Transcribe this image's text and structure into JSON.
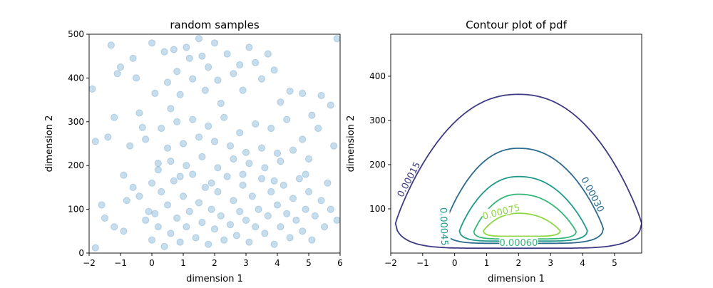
{
  "chart_data": [
    {
      "type": "scatter",
      "title": "random samples",
      "xlabel": "dimension 1",
      "ylabel": "dimension 2",
      "xlim": [
        -2,
        6
      ],
      "ylim": [
        0,
        500
      ],
      "xticks": [
        -2,
        -1,
        0,
        1,
        2,
        3,
        4,
        5,
        6
      ],
      "yticks": [
        0,
        100,
        200,
        300,
        400,
        500
      ],
      "xtick_labels": [
        "−2",
        "−1",
        "0",
        "1",
        "2",
        "3",
        "4",
        "5",
        "6"
      ],
      "ytick_labels": [
        "0",
        "100",
        "200",
        "300",
        "400",
        "500"
      ],
      "marker_color": "#1f77b4",
      "marker_alpha": 0.25,
      "grid": false,
      "series": [
        {
          "points": [
            [
              -1.9,
              375
            ],
            [
              -1.8,
              255
            ],
            [
              -1.8,
              12
            ],
            [
              -1.6,
              110
            ],
            [
              -1.4,
              265
            ],
            [
              -1.3,
              475
            ],
            [
              -1.1,
              410
            ],
            [
              -1.0,
              425
            ],
            [
              -0.9,
              178
            ],
            [
              -0.8,
              120
            ],
            [
              -0.6,
              445
            ],
            [
              -0.5,
              400
            ],
            [
              -0.4,
              320
            ],
            [
              -0.3,
              287
            ],
            [
              -0.1,
              95
            ],
            [
              0.0,
              480
            ],
            [
              0.1,
              365
            ],
            [
              0.2,
              205
            ],
            [
              0.4,
              460
            ],
            [
              0.5,
              390
            ],
            [
              0.6,
              330
            ],
            [
              0.7,
              465
            ],
            [
              0.8,
              415
            ],
            [
              0.9,
              362
            ],
            [
              1.1,
              470
            ],
            [
              1.2,
              445
            ],
            [
              1.3,
              398
            ],
            [
              1.5,
              490
            ],
            [
              1.6,
              450
            ],
            [
              1.7,
              372
            ],
            [
              1.8,
              425
            ],
            [
              2.0,
              480
            ],
            [
              2.1,
              395
            ],
            [
              2.2,
              342
            ],
            [
              2.4,
              455
            ],
            [
              2.6,
              410
            ],
            [
              2.8,
              430
            ],
            [
              2.9,
              372
            ],
            [
              3.1,
              470
            ],
            [
              3.3,
              435
            ],
            [
              3.5,
              398
            ],
            [
              3.7,
              455
            ],
            [
              3.9,
              418
            ],
            [
              4.1,
              345
            ],
            [
              4.4,
              370
            ],
            [
              4.8,
              365
            ],
            [
              5.1,
              315
            ],
            [
              5.4,
              360
            ],
            [
              5.7,
              338
            ],
            [
              5.9,
              490
            ],
            [
              -1.2,
              310
            ],
            [
              -0.7,
              245
            ],
            [
              -0.2,
              260
            ],
            [
              0.3,
              285
            ],
            [
              0.8,
              300
            ],
            [
              1.3,
              305
            ],
            [
              1.8,
              290
            ],
            [
              2.3,
              310
            ],
            [
              2.8,
              275
            ],
            [
              3.3,
              295
            ],
            [
              3.8,
              285
            ],
            [
              4.3,
              305
            ],
            [
              4.8,
              260
            ],
            [
              5.3,
              285
            ],
            [
              5.8,
              245
            ],
            [
              0.5,
              240
            ],
            [
              1.0,
              250
            ],
            [
              1.5,
              265
            ],
            [
              2.0,
              255
            ],
            [
              2.5,
              245
            ],
            [
              3.0,
              230
            ],
            [
              3.5,
              240
            ],
            [
              4.0,
              228
            ],
            [
              4.5,
              235
            ],
            [
              5.0,
              215
            ],
            [
              -1.5,
              80
            ],
            [
              -1.2,
              60
            ],
            [
              -0.9,
              50
            ],
            [
              -0.6,
              150
            ],
            [
              -0.4,
              130
            ],
            [
              -0.2,
              75
            ],
            [
              0.0,
              30
            ],
            [
              0.1,
              90
            ],
            [
              0.2,
              60
            ],
            [
              0.3,
              140
            ],
            [
              0.4,
              15
            ],
            [
              0.5,
              110
            ],
            [
              0.6,
              45
            ],
            [
              0.7,
              165
            ],
            [
              0.8,
              80
            ],
            [
              0.9,
              25
            ],
            [
              1.0,
              130
            ],
            [
              1.1,
              60
            ],
            [
              1.2,
              95
            ],
            [
              1.3,
              180
            ],
            [
              1.4,
              35
            ],
            [
              1.5,
              115
            ],
            [
              1.6,
              70
            ],
            [
              1.7,
              150
            ],
            [
              1.8,
              20
            ],
            [
              1.9,
              100
            ],
            [
              2.0,
              55
            ],
            [
              2.1,
              140
            ],
            [
              2.2,
              85
            ],
            [
              2.3,
              30
            ],
            [
              2.4,
              175
            ],
            [
              2.5,
              65
            ],
            [
              2.6,
              120
            ],
            [
              2.7,
              40
            ],
            [
              2.8,
              95
            ],
            [
              2.9,
              155
            ],
            [
              3.0,
              75
            ],
            [
              3.1,
              25
            ],
            [
              3.2,
              130
            ],
            [
              3.3,
              60
            ],
            [
              3.4,
              100
            ],
            [
              3.5,
              170
            ],
            [
              3.6,
              45
            ],
            [
              3.7,
              85
            ],
            [
              3.8,
              140
            ],
            [
              3.9,
              20
            ],
            [
              4.0,
              110
            ],
            [
              4.1,
              60
            ],
            [
              4.2,
              155
            ],
            [
              4.3,
              90
            ],
            [
              4.4,
              35
            ],
            [
              4.5,
              125
            ],
            [
              4.6,
              75
            ],
            [
              4.7,
              170
            ],
            [
              4.8,
              50
            ],
            [
              4.9,
              100
            ],
            [
              5.0,
              140
            ],
            [
              5.1,
              30
            ],
            [
              5.2,
              85
            ],
            [
              5.4,
              120
            ],
            [
              5.5,
              60
            ],
            [
              5.7,
              100
            ],
            [
              5.9,
              75
            ],
            [
              0.2,
              190
            ],
            [
              0.6,
              210
            ],
            [
              1.1,
              200
            ],
            [
              1.6,
              220
            ],
            [
              2.1,
              195
            ],
            [
              2.6,
              215
            ],
            [
              3.1,
              205
            ],
            [
              3.6,
              195
            ],
            [
              4.1,
              210
            ],
            [
              0.0,
              160
            ],
            [
              0.9,
              175
            ],
            [
              1.9,
              160
            ],
            [
              2.9,
              180
            ],
            [
              3.9,
              165
            ],
            [
              4.9,
              180
            ],
            [
              5.6,
              160
            ]
          ]
        }
      ]
    },
    {
      "type": "contour",
      "title": "Contour plot of pdf",
      "xlabel": "dimension 1",
      "ylabel": "dimension 2",
      "xlim": [
        -2,
        5.85
      ],
      "ylim": [
        0,
        495
      ],
      "xticks": [
        -2,
        -1,
        0,
        1,
        2,
        3,
        4,
        5
      ],
      "yticks": [
        100,
        200,
        300,
        400
      ],
      "xtick_labels": [
        "−2",
        "−1",
        "0",
        "1",
        "2",
        "3",
        "4",
        "5"
      ],
      "ytick_labels": [
        "100",
        "200",
        "300",
        "400"
      ],
      "grid": false,
      "levels": [
        {
          "value": 0.00015,
          "label": "0.00015",
          "color": "#3e3a84",
          "peak": [
            2.0,
            359
          ],
          "bottom": 11,
          "min_y_level": 67,
          "x_left": -1.85,
          "x_right": 5.85,
          "label_pos": [
            -1.45,
            167
          ],
          "label_rot": -62
        },
        {
          "value": 0.0003,
          "label": "0.00030",
          "color": "#2e6b8e",
          "peak": [
            2.0,
            237
          ],
          "bottom": 22,
          "min_y_level": 55,
          "x_left": -0.35,
          "x_right": 4.65,
          "label_pos": [
            4.33,
            133
          ],
          "label_rot": 62
        },
        {
          "value": 0.00045,
          "label": "0.00045",
          "color": "#1f9a8a",
          "peak": [
            2.0,
            173
          ],
          "bottom": 27,
          "min_y_level": 50,
          "x_left": 0.15,
          "x_right": 4.15,
          "label_pos": [
            -0.32,
            60
          ],
          "label_rot": 88
        },
        {
          "value": 0.0006,
          "label": "0.00060",
          "color": "#35b779",
          "peak": [
            2.0,
            133
          ],
          "bottom": 32,
          "min_y_level": 48,
          "x_left": 0.6,
          "x_right": 3.8,
          "label_pos": [
            2.0,
            24
          ],
          "label_rot": 0
        },
        {
          "value": 0.00075,
          "label": "0.00075",
          "color": "#8fd744",
          "peak": [
            2.0,
            90
          ],
          "bottom": 38,
          "min_y_level": 50,
          "x_left": 0.9,
          "x_right": 3.3,
          "label_pos": [
            1.45,
            94
          ],
          "label_rot": -14
        }
      ]
    }
  ]
}
